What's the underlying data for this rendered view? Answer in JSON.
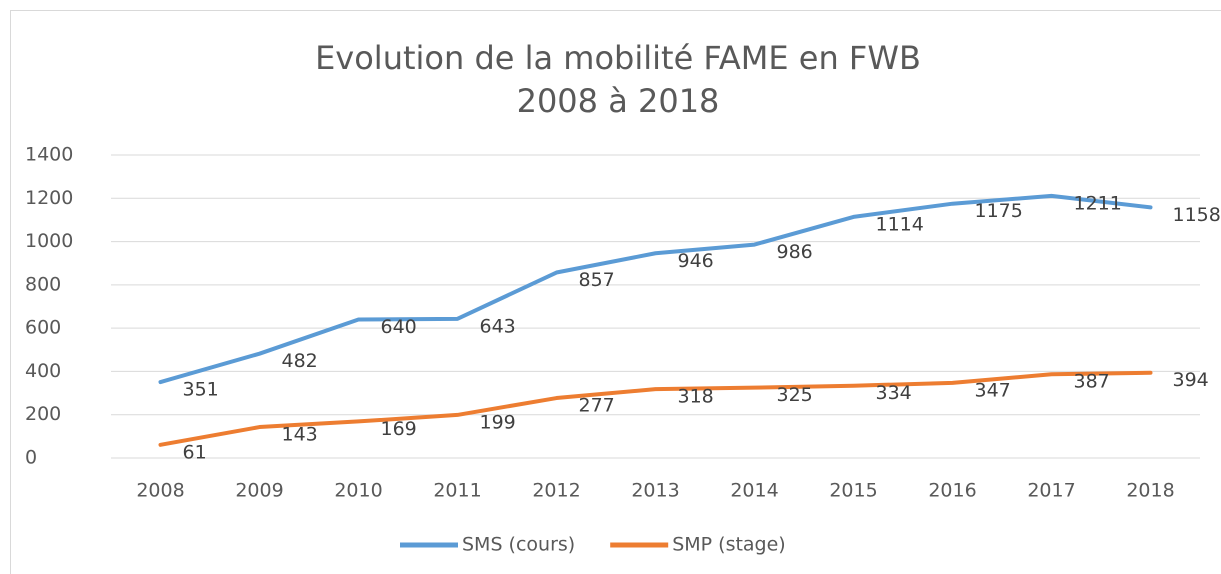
{
  "chart_data": {
    "type": "line",
    "title": [
      "Evolution de la mobilité FAME en FWB",
      "2008 à 2018"
    ],
    "categories": [
      "2008",
      "2009",
      "2010",
      "2011",
      "2012",
      "2013",
      "2014",
      "2015",
      "2016",
      "2017",
      "2018"
    ],
    "series": [
      {
        "name": "SMS (cours)",
        "color": "#5b9bd5",
        "values": [
          351,
          482,
          640,
          643,
          857,
          946,
          986,
          1114,
          1175,
          1211,
          1158
        ]
      },
      {
        "name": "SMP (stage)",
        "color": "#ed7d31",
        "values": [
          61,
          143,
          169,
          199,
          277,
          318,
          325,
          334,
          347,
          387,
          394
        ]
      }
    ],
    "ylim": [
      0,
      1400
    ],
    "yticks": [
      0,
      200,
      400,
      600,
      800,
      1000,
      1200,
      1400
    ],
    "grid": true,
    "legend": "bottom"
  }
}
